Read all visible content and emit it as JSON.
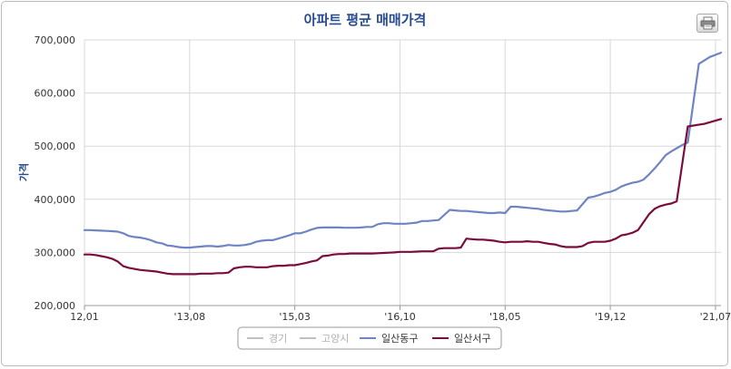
{
  "chart_data": {
    "type": "line",
    "title": "아파트 평균 매매가격",
    "ylabel": "가격",
    "xlabel": "",
    "ylim": [
      200000,
      700000
    ],
    "yticks": [
      "200,000",
      "300,000",
      "400,000",
      "500,000",
      "600,000",
      "700,000"
    ],
    "xticks": [
      "12,01",
      "'13,08",
      "'15,03",
      "'16,10",
      "'18,05",
      "'19,12",
      "'21,07"
    ],
    "legend_position": "bottom",
    "grid": true,
    "legend": [
      {
        "name": "경기",
        "color": "#c0c0c0",
        "disabled": true
      },
      {
        "name": "고양시",
        "color": "#c0c0c0",
        "disabled": true
      },
      {
        "name": "일산동구",
        "color": "#6f84c2",
        "disabled": false
      },
      {
        "name": "일산서구",
        "color": "#7b0c3c",
        "disabled": false
      }
    ],
    "x": [
      0,
      1,
      2,
      3,
      4,
      5,
      6,
      7,
      8,
      9,
      10,
      11,
      12,
      13,
      14,
      15,
      16,
      17,
      18,
      19,
      20,
      21,
      22,
      23,
      24,
      25,
      26,
      27,
      28,
      29,
      30,
      31,
      32,
      33,
      34,
      35,
      36,
      37,
      38,
      39,
      40,
      41,
      42,
      43,
      44,
      45,
      46,
      47,
      48,
      49,
      50,
      51,
      52,
      53,
      54,
      55,
      56,
      57,
      58,
      59,
      60,
      61,
      62,
      63,
      64,
      65,
      66,
      67,
      68,
      69,
      70,
      71,
      72,
      73,
      74,
      75,
      76,
      77,
      78,
      79,
      80,
      81,
      82,
      83,
      84,
      85,
      86,
      87,
      88,
      89,
      90,
      91,
      92,
      93,
      94,
      95,
      96,
      97,
      98,
      99,
      100,
      101,
      102,
      103,
      104,
      105,
      106,
      107,
      108,
      109,
      110,
      111,
      112,
      113,
      114,
      115
    ],
    "series": [
      {
        "name": "일산동구",
        "color": "#6f84c2",
        "values": [
          342000,
          342000,
          341500,
          341000,
          340500,
          340000,
          339000,
          336000,
          331000,
          329000,
          328000,
          326000,
          323000,
          319000,
          317000,
          313000,
          312000,
          310000,
          309000,
          309000,
          310000,
          311000,
          312000,
          312000,
          311000,
          312000,
          314000,
          313000,
          313000,
          314000,
          316000,
          320000,
          322000,
          323000,
          323000,
          326000,
          329000,
          332000,
          336000,
          336000,
          339000,
          343000,
          346000,
          347000,
          347000,
          347000,
          347000,
          346500,
          346500,
          346500,
          347000,
          348000,
          348000,
          353000,
          355000,
          355000,
          354000,
          354000,
          354000,
          355000,
          356000,
          359000,
          359000,
          360000,
          361000,
          380000,
          379000,
          378000,
          378000,
          377000,
          376000,
          375000,
          374000,
          374000,
          375000,
          374000,
          386000,
          386000,
          385000,
          384000,
          383000,
          382000,
          380000,
          379000,
          378000,
          377000,
          377000,
          378000,
          379000,
          403000,
          405000,
          408000,
          412000,
          414000,
          418000,
          424000,
          428000,
          431000,
          433000,
          437000,
          447000,
          458000,
          470000,
          483000,
          490000,
          496000,
          502000,
          507000,
          655000,
          668000,
          676000
        ],
        "x": [
          0,
          1,
          2,
          3,
          4,
          5,
          6,
          7,
          8,
          9,
          10,
          11,
          12,
          13,
          14,
          15,
          16,
          17,
          18,
          19,
          20,
          21,
          22,
          23,
          24,
          25,
          26,
          27,
          28,
          29,
          30,
          31,
          32,
          33,
          34,
          35,
          36,
          37,
          38,
          39,
          40,
          41,
          42,
          43,
          44,
          45,
          46,
          47,
          48,
          49,
          50,
          51,
          52,
          53,
          54,
          55,
          56,
          57,
          58,
          59,
          60,
          61,
          62,
          63,
          64,
          66,
          67,
          68,
          69,
          70,
          71,
          72,
          73,
          74,
          75,
          76,
          77,
          78,
          79,
          80,
          81,
          82,
          83,
          84,
          85,
          86,
          87,
          88,
          89,
          91,
          92,
          93,
          94,
          95,
          96,
          97,
          98,
          99,
          100,
          101,
          102,
          103,
          104,
          105,
          106,
          107,
          108,
          109,
          111,
          113,
          115
        ]
      },
      {
        "name": "일산서구",
        "color": "#7b0c3c",
        "values": [
          296000,
          296000,
          295000,
          293000,
          291000,
          288000,
          283000,
          274000,
          271000,
          269000,
          267000,
          266000,
          265000,
          264000,
          262000,
          260000,
          259000,
          259000,
          259000,
          259000,
          259000,
          260000,
          260000,
          260000,
          261000,
          261000,
          262000,
          270000,
          272000,
          273000,
          273000,
          272000,
          272000,
          272000,
          274000,
          275000,
          275000,
          276000,
          276000,
          278000,
          280000,
          283000,
          285000,
          293000,
          294000,
          296000,
          297000,
          297000,
          298000,
          298000,
          298000,
          298000,
          298000,
          298500,
          299000,
          299500,
          300000,
          301000,
          301000,
          301000,
          301500,
          302000,
          302000,
          302000,
          307000,
          308000,
          308000,
          308000,
          309000,
          326000,
          325000,
          324000,
          324000,
          323000,
          322000,
          320000,
          319000,
          320000,
          320000,
          320000,
          321000,
          320000,
          320000,
          318000,
          316000,
          315000,
          312000,
          310000,
          310000,
          310000,
          312000,
          318000,
          320000,
          320000,
          320000,
          322000,
          326000,
          332000,
          334000,
          337000,
          342000,
          357000,
          372000,
          382000,
          387000,
          390000,
          392000,
          396000,
          537000,
          542000,
          551000
        ],
        "x": [
          0,
          1,
          2,
          3,
          4,
          5,
          6,
          7,
          8,
          9,
          10,
          11,
          12,
          13,
          14,
          15,
          16,
          17,
          18,
          19,
          20,
          21,
          22,
          23,
          24,
          25,
          26,
          27,
          28,
          29,
          30,
          31,
          32,
          33,
          34,
          35,
          36,
          37,
          38,
          39,
          40,
          41,
          42,
          43,
          44,
          45,
          46,
          47,
          48,
          49,
          50,
          51,
          52,
          53,
          54,
          55,
          56,
          57,
          58,
          59,
          60,
          61,
          62,
          63,
          64,
          65,
          66,
          67,
          68,
          69,
          70,
          71,
          72,
          73,
          74,
          75,
          76,
          77,
          78,
          79,
          80,
          81,
          82,
          83,
          84,
          85,
          86,
          87,
          88,
          89,
          90,
          91,
          92,
          93,
          94,
          95,
          96,
          97,
          98,
          99,
          100,
          101,
          102,
          103,
          104,
          105,
          106,
          107,
          109,
          112,
          115
        ]
      }
    ]
  }
}
